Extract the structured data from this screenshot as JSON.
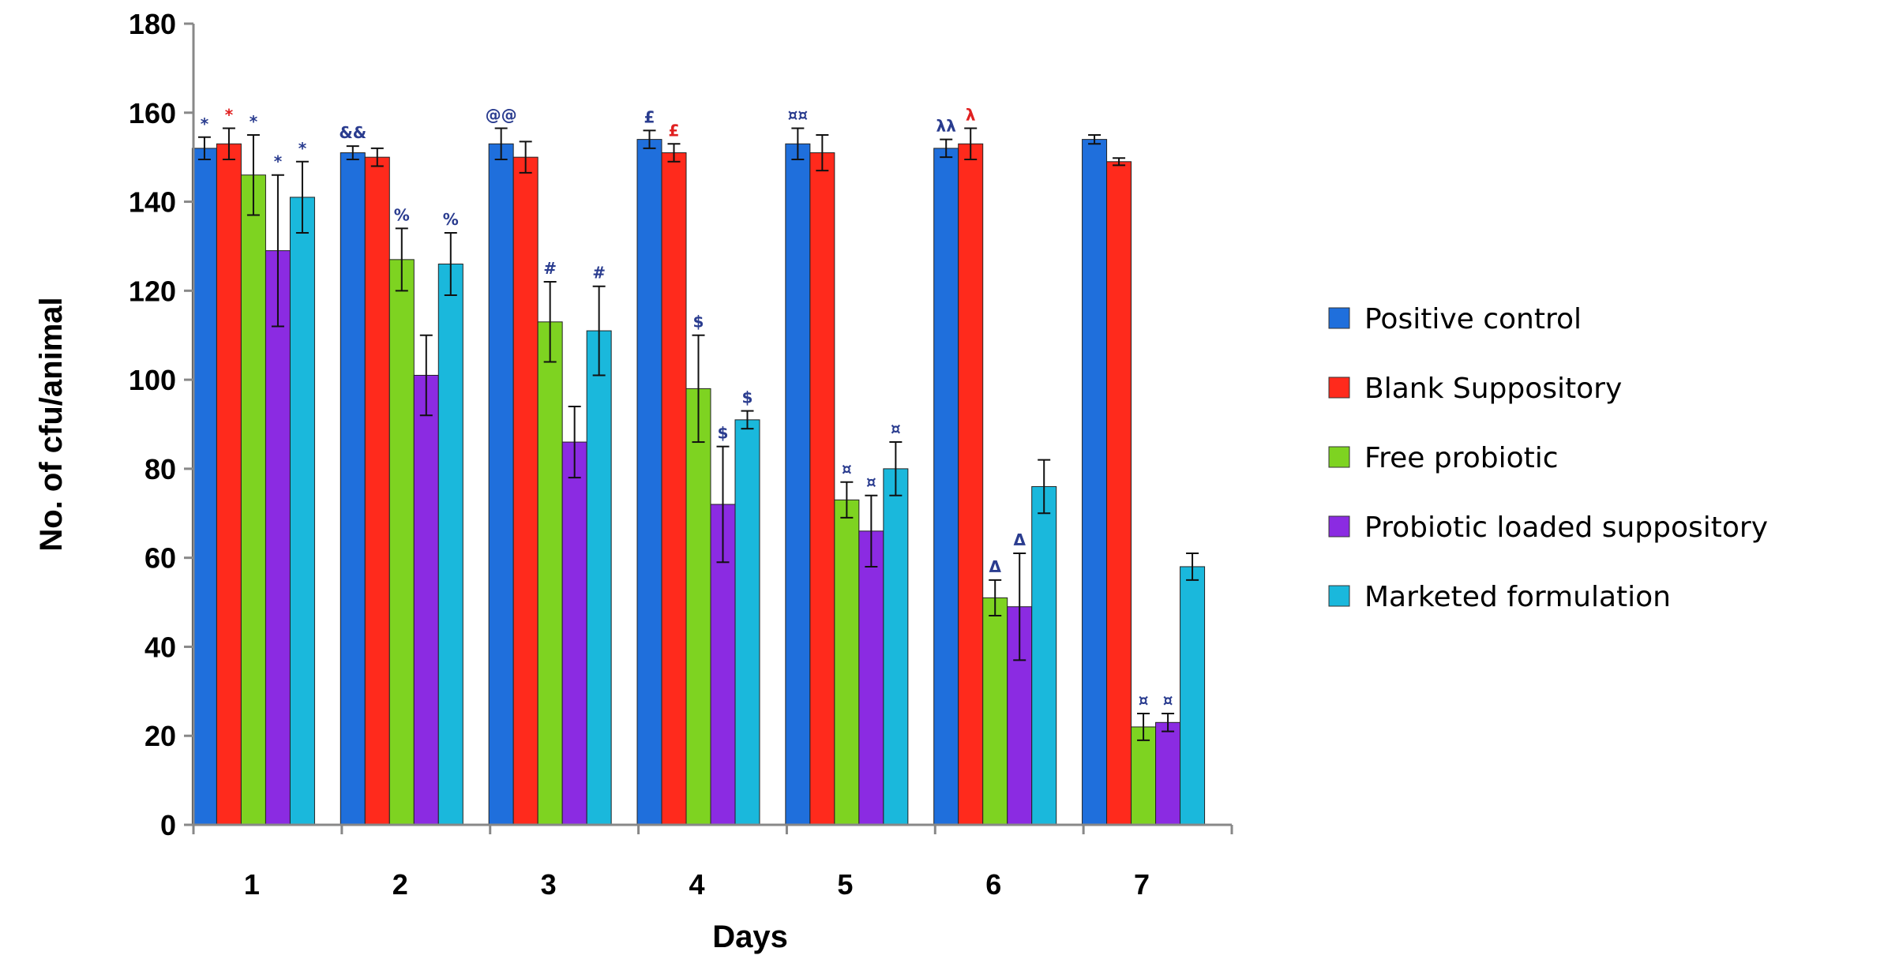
{
  "chart_data": {
    "type": "bar",
    "title": "",
    "xlabel": "Days",
    "ylabel": "No. of cfu/animal",
    "ylim": [
      0,
      180
    ],
    "ytick_step": 20,
    "yticks": [
      "0",
      "20",
      "40",
      "60",
      "80",
      "100",
      "120",
      "140",
      "160",
      "180"
    ],
    "categories": [
      "1",
      "2",
      "3",
      "4",
      "5",
      "6",
      "7"
    ],
    "grid": false,
    "legend_position": "right",
    "series": [
      {
        "name": "Positive control",
        "color": "#1f6fdc",
        "values": [
          152,
          151,
          153,
          154,
          153,
          152,
          154
        ],
        "errors": [
          2.5,
          1.5,
          3.5,
          2,
          3.5,
          2,
          1
        ],
        "markers": [
          "*",
          "&&",
          "@@",
          "£",
          "¤¤",
          "λλ",
          ""
        ]
      },
      {
        "name": "Blank Suppository",
        "color": "#ff2a1c",
        "values": [
          153,
          150,
          150,
          151,
          151,
          153,
          149
        ],
        "errors": [
          3.5,
          2,
          3.5,
          2,
          4,
          3.5,
          0.8
        ],
        "markers": [
          "*",
          "",
          "",
          "£",
          "",
          "λ",
          ""
        ]
      },
      {
        "name": "Free probiotic",
        "color": "#7ed321",
        "values": [
          146,
          127,
          113,
          98,
          73,
          51,
          22
        ],
        "errors": [
          9,
          7,
          9,
          12,
          4,
          4,
          3
        ],
        "markers": [
          "*",
          "%",
          "#",
          "$",
          "¤",
          "Δ",
          "¤"
        ]
      },
      {
        "name": "Probiotic loaded suppository",
        "color": "#8b2be2",
        "values": [
          129,
          101,
          86,
          72,
          66,
          49,
          23
        ],
        "errors": [
          17,
          9,
          8,
          13,
          8,
          12,
          2
        ],
        "markers": [
          "*",
          "",
          "",
          "$",
          "¤",
          "Δ",
          "¤"
        ]
      },
      {
        "name": "Marketed formulation",
        "color": "#1ab8dc",
        "values": [
          141,
          126,
          111,
          91,
          80,
          76,
          58
        ],
        "errors": [
          8,
          7,
          10,
          2,
          6,
          6,
          3
        ],
        "markers": [
          "*",
          "%",
          "#",
          "$",
          "¤",
          "",
          ""
        ]
      }
    ]
  }
}
